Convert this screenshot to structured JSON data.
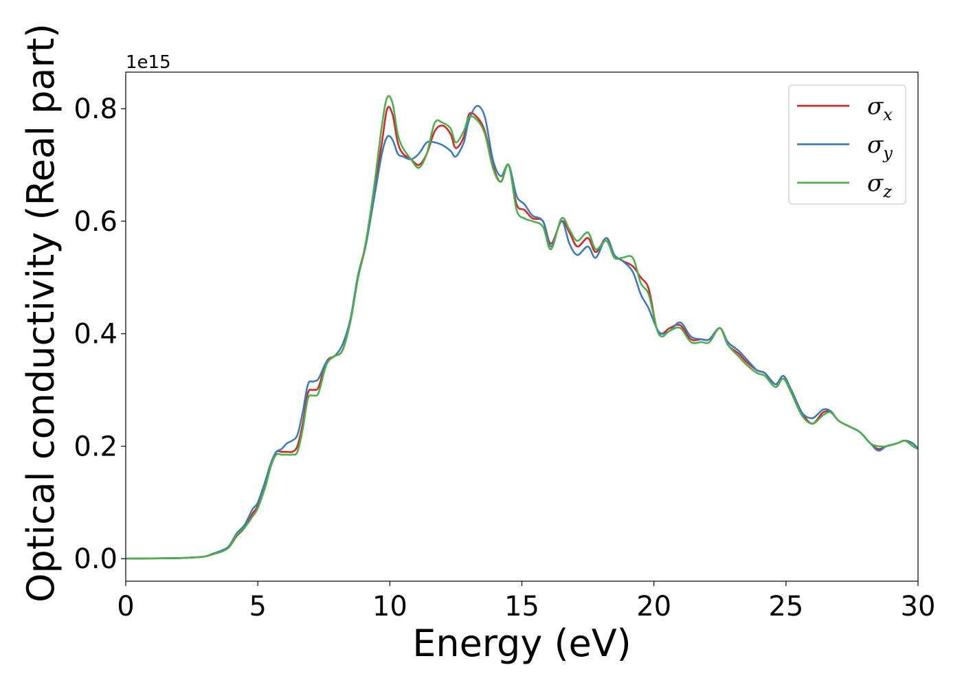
{
  "chart_data": {
    "type": "line",
    "xlabel": "Energy (eV)",
    "ylabel": "Optical conductivity (Real part)",
    "y_offset_label": "1e15",
    "xlim": [
      0,
      30
    ],
    "ylim": [
      -0.04,
      0.865
    ],
    "x_ticks": [
      0,
      5,
      10,
      15,
      20,
      25,
      30
    ],
    "x_tick_labels": [
      "0",
      "5",
      "10",
      "15",
      "20",
      "25",
      "30"
    ],
    "y_ticks": [
      0.0,
      0.2,
      0.4,
      0.6,
      0.8
    ],
    "y_tick_labels": [
      "0.0",
      "0.2",
      "0.4",
      "0.6",
      "0.8"
    ],
    "grid": false,
    "legend_position": "top-right",
    "series": [
      {
        "name": "σx",
        "legend_symbol": "σ",
        "legend_subscript": "x",
        "color": "#d62728",
        "x": [
          0,
          1,
          2,
          2.5,
          3,
          3.3,
          3.6,
          3.9,
          4.2,
          4.5,
          4.8,
          5.0,
          5.3,
          5.5,
          5.7,
          5.9,
          6.1,
          6.3,
          6.5,
          6.7,
          6.9,
          7.1,
          7.3,
          7.6,
          7.9,
          8.2,
          8.5,
          8.8,
          9.1,
          9.4,
          9.7,
          9.9,
          10.1,
          10.3,
          10.5,
          10.8,
          11.1,
          11.4,
          11.7,
          12.0,
          12.3,
          12.5,
          12.8,
          13.0,
          13.3,
          13.6,
          13.9,
          14.2,
          14.5,
          14.8,
          15.1,
          15.4,
          15.8,
          16.1,
          16.5,
          16.8,
          17.1,
          17.5,
          17.8,
          18.2,
          18.5,
          18.8,
          19.2,
          19.5,
          19.8,
          20.1,
          20.3,
          20.6,
          21.0,
          21.4,
          21.8,
          22.1,
          22.5,
          22.8,
          23.2,
          23.5,
          23.9,
          24.2,
          24.6,
          24.9,
          25.2,
          25.6,
          26.0,
          26.4,
          26.7,
          27.0,
          27.4,
          27.8,
          28.2,
          28.5,
          28.8,
          29.2,
          29.5,
          29.8,
          30
        ],
        "y": [
          0,
          0.0005,
          0.001,
          0.002,
          0.004,
          0.008,
          0.013,
          0.02,
          0.04,
          0.055,
          0.08,
          0.095,
          0.14,
          0.17,
          0.19,
          0.19,
          0.19,
          0.19,
          0.2,
          0.24,
          0.295,
          0.3,
          0.305,
          0.35,
          0.36,
          0.37,
          0.42,
          0.5,
          0.56,
          0.65,
          0.74,
          0.8,
          0.79,
          0.74,
          0.72,
          0.71,
          0.7,
          0.72,
          0.76,
          0.77,
          0.755,
          0.73,
          0.75,
          0.79,
          0.785,
          0.76,
          0.7,
          0.67,
          0.7,
          0.63,
          0.62,
          0.605,
          0.6,
          0.56,
          0.6,
          0.58,
          0.555,
          0.57,
          0.545,
          0.57,
          0.54,
          0.53,
          0.52,
          0.5,
          0.48,
          0.41,
          0.4,
          0.41,
          0.415,
          0.39,
          0.39,
          0.39,
          0.41,
          0.38,
          0.365,
          0.35,
          0.335,
          0.33,
          0.31,
          0.32,
          0.3,
          0.26,
          0.24,
          0.26,
          0.26,
          0.245,
          0.235,
          0.225,
          0.205,
          0.195,
          0.2,
          0.205,
          0.21,
          0.205,
          0.195
        ]
      },
      {
        "name": "σy",
        "legend_symbol": "σ",
        "legend_subscript": "y",
        "color": "#3a7bbf",
        "x": [
          0,
          1,
          2,
          2.5,
          3,
          3.3,
          3.6,
          3.9,
          4.2,
          4.5,
          4.8,
          5.0,
          5.3,
          5.5,
          5.7,
          5.9,
          6.1,
          6.3,
          6.5,
          6.7,
          6.9,
          7.1,
          7.3,
          7.6,
          7.9,
          8.2,
          8.5,
          8.8,
          9.1,
          9.4,
          9.7,
          9.9,
          10.1,
          10.3,
          10.5,
          10.8,
          11.1,
          11.4,
          11.7,
          12.0,
          12.3,
          12.5,
          12.8,
          13.0,
          13.3,
          13.6,
          13.9,
          14.2,
          14.5,
          14.8,
          15.1,
          15.4,
          15.8,
          16.1,
          16.5,
          16.8,
          17.1,
          17.5,
          17.8,
          18.2,
          18.5,
          18.8,
          19.2,
          19.5,
          19.8,
          20.1,
          20.3,
          20.6,
          21.0,
          21.4,
          21.8,
          22.1,
          22.5,
          22.8,
          23.2,
          23.5,
          23.9,
          24.2,
          24.6,
          24.9,
          25.2,
          25.6,
          26.0,
          26.4,
          26.7,
          27.0,
          27.4,
          27.8,
          28.2,
          28.5,
          28.8,
          29.2,
          29.5,
          29.8,
          30
        ],
        "y": [
          0,
          0.0005,
          0.001,
          0.002,
          0.004,
          0.009,
          0.014,
          0.022,
          0.045,
          0.06,
          0.088,
          0.1,
          0.14,
          0.17,
          0.19,
          0.195,
          0.205,
          0.21,
          0.22,
          0.26,
          0.31,
          0.315,
          0.32,
          0.35,
          0.36,
          0.38,
          0.425,
          0.505,
          0.56,
          0.64,
          0.72,
          0.75,
          0.745,
          0.72,
          0.715,
          0.71,
          0.72,
          0.74,
          0.74,
          0.735,
          0.725,
          0.715,
          0.74,
          0.78,
          0.805,
          0.785,
          0.71,
          0.68,
          0.7,
          0.645,
          0.63,
          0.61,
          0.6,
          0.555,
          0.6,
          0.56,
          0.54,
          0.555,
          0.535,
          0.57,
          0.54,
          0.53,
          0.51,
          0.47,
          0.445,
          0.41,
          0.4,
          0.405,
          0.42,
          0.395,
          0.39,
          0.39,
          0.41,
          0.385,
          0.37,
          0.355,
          0.335,
          0.33,
          0.31,
          0.325,
          0.3,
          0.26,
          0.25,
          0.265,
          0.262,
          0.245,
          0.235,
          0.225,
          0.205,
          0.192,
          0.2,
          0.205,
          0.21,
          0.205,
          0.195
        ]
      },
      {
        "name": "σz",
        "legend_symbol": "σ",
        "legend_subscript": "z",
        "color": "#4daf4a",
        "x": [
          0,
          1,
          2,
          2.5,
          3,
          3.3,
          3.6,
          3.9,
          4.2,
          4.5,
          4.8,
          5.0,
          5.3,
          5.5,
          5.7,
          5.9,
          6.1,
          6.3,
          6.5,
          6.7,
          6.9,
          7.1,
          7.3,
          7.6,
          7.9,
          8.2,
          8.5,
          8.8,
          9.1,
          9.4,
          9.7,
          9.9,
          10.1,
          10.3,
          10.5,
          10.8,
          11.1,
          11.4,
          11.7,
          12.0,
          12.3,
          12.5,
          12.8,
          13.0,
          13.3,
          13.6,
          13.9,
          14.2,
          14.5,
          14.8,
          15.1,
          15.4,
          15.8,
          16.1,
          16.5,
          16.8,
          17.1,
          17.5,
          17.8,
          18.2,
          18.5,
          18.8,
          19.2,
          19.5,
          19.8,
          20.1,
          20.3,
          20.6,
          21.0,
          21.4,
          21.8,
          22.1,
          22.5,
          22.8,
          23.2,
          23.5,
          23.9,
          24.2,
          24.6,
          24.9,
          25.2,
          25.6,
          26.0,
          26.4,
          26.7,
          27.0,
          27.4,
          27.8,
          28.2,
          28.5,
          28.8,
          29.2,
          29.5,
          29.8,
          30
        ],
        "y": [
          0,
          0.0005,
          0.001,
          0.002,
          0.004,
          0.008,
          0.012,
          0.02,
          0.042,
          0.055,
          0.075,
          0.09,
          0.13,
          0.165,
          0.185,
          0.185,
          0.185,
          0.185,
          0.19,
          0.23,
          0.285,
          0.29,
          0.295,
          0.345,
          0.36,
          0.37,
          0.42,
          0.5,
          0.565,
          0.66,
          0.77,
          0.82,
          0.81,
          0.755,
          0.73,
          0.71,
          0.695,
          0.72,
          0.775,
          0.775,
          0.765,
          0.74,
          0.76,
          0.785,
          0.78,
          0.755,
          0.695,
          0.67,
          0.7,
          0.62,
          0.605,
          0.6,
          0.59,
          0.55,
          0.605,
          0.585,
          0.565,
          0.58,
          0.55,
          0.565,
          0.535,
          0.535,
          0.535,
          0.49,
          0.47,
          0.41,
          0.395,
          0.405,
          0.41,
          0.385,
          0.385,
          0.385,
          0.41,
          0.38,
          0.36,
          0.345,
          0.33,
          0.325,
          0.305,
          0.32,
          0.295,
          0.255,
          0.24,
          0.255,
          0.26,
          0.245,
          0.235,
          0.225,
          0.205,
          0.2,
          0.2,
          0.205,
          0.21,
          0.2,
          0.195
        ]
      }
    ]
  }
}
